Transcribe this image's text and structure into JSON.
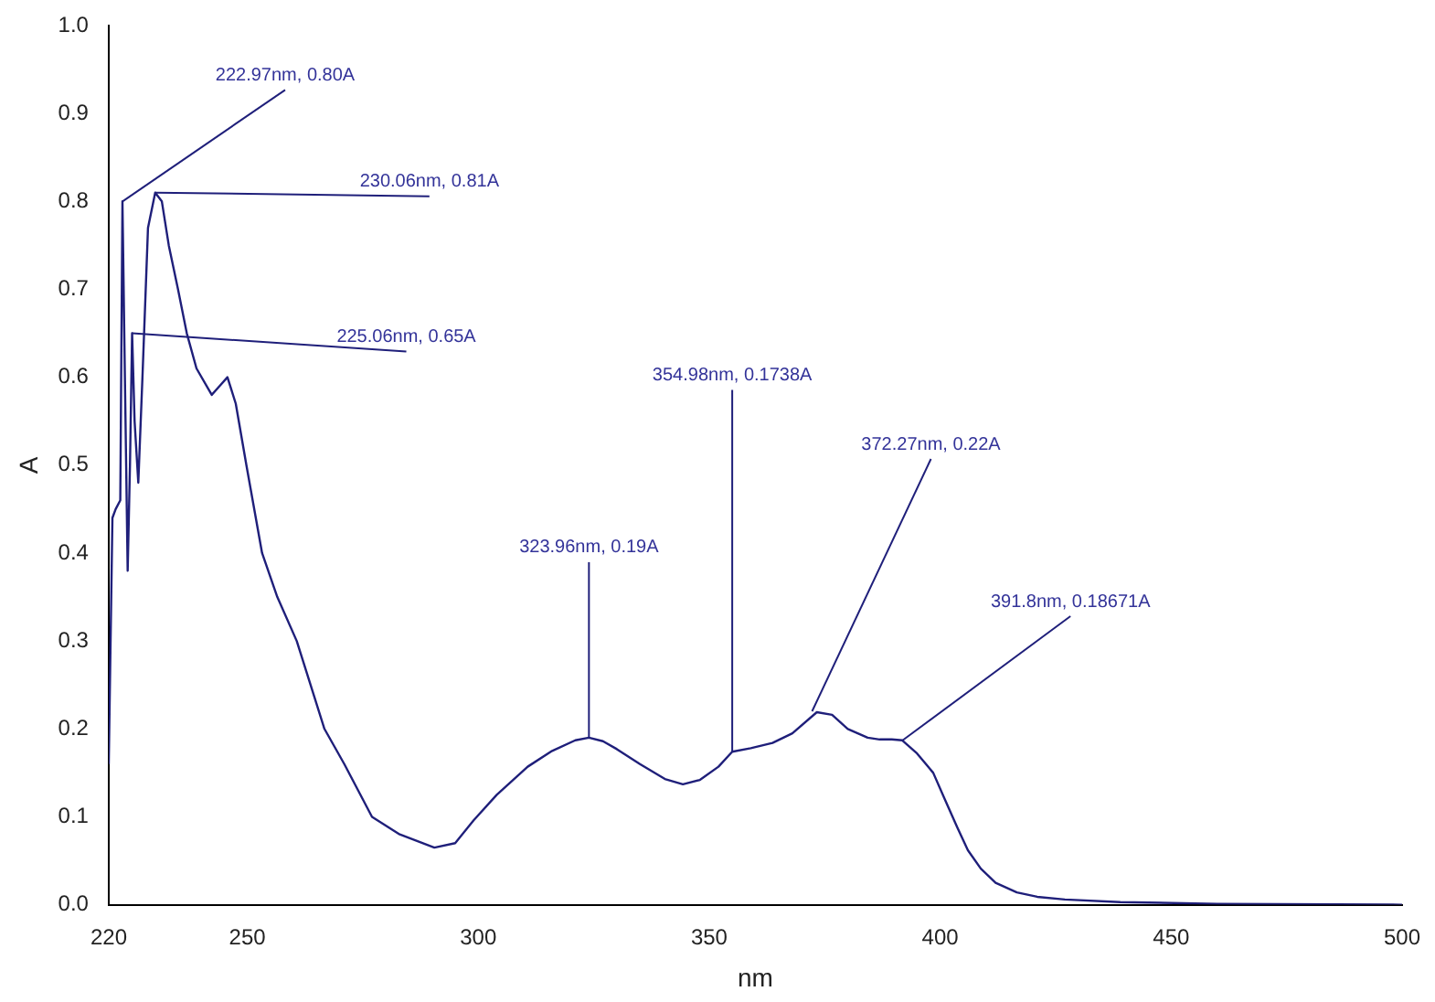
{
  "chart_data": {
    "type": "line",
    "xlabel": "nm",
    "ylabel": "A",
    "x": [
      220,
      220.8,
      221.5,
      222.5,
      222.97,
      223.5,
      224.1,
      224.6,
      225.06,
      225.6,
      226.4,
      227.3,
      228.5,
      230.06,
      231.5,
      233,
      235,
      236.9,
      239,
      242.3,
      244,
      245.7,
      247.5,
      249.8,
      253.2,
      256.5,
      260.7,
      266.7,
      271,
      277,
      283,
      290.5,
      295,
      299,
      304,
      310.7,
      316,
      321,
      323.96,
      327,
      330,
      335,
      340.4,
      344.3,
      348,
      352,
      354.98,
      359,
      363.7,
      368,
      373.3,
      376.6,
      380,
      384.3,
      386.9,
      389.5,
      391.8,
      395,
      398.5,
      401,
      403.7,
      406,
      408.8,
      412,
      416.6,
      421,
      427,
      439,
      460,
      500
    ],
    "series": [
      {
        "color": "#1f1f7a",
        "values": [
          0.16,
          0.44,
          0.45,
          0.46,
          0.8,
          0.6,
          0.38,
          0.5,
          0.65,
          0.55,
          0.48,
          0.6,
          0.77,
          0.81,
          0.8,
          0.75,
          0.7,
          0.65,
          0.61,
          0.58,
          0.59,
          0.6,
          0.57,
          0.5,
          0.4,
          0.35,
          0.3,
          0.2,
          0.16,
          0.1,
          0.08,
          0.065,
          0.07,
          0.096,
          0.125,
          0.157,
          0.175,
          0.187,
          0.19,
          0.186,
          0.177,
          0.16,
          0.143,
          0.137,
          0.142,
          0.157,
          0.174,
          0.178,
          0.184,
          0.195,
          0.219,
          0.216,
          0.2,
          0.19,
          0.188,
          0.188,
          0.187,
          0.172,
          0.15,
          0.12,
          0.088,
          0.062,
          0.041,
          0.025,
          0.014,
          0.009,
          0.006,
          0.003,
          0.001,
          0.0
        ]
      }
    ],
    "xlim": [
      220,
      500
    ],
    "xticks": [
      220,
      250,
      300,
      350,
      400,
      450,
      500
    ],
    "ylim": [
      0,
      1
    ],
    "yticks": [
      {
        "value": 0,
        "label": "0.0"
      },
      0.1,
      0.2,
      0.3,
      0.4,
      0.5,
      0.6,
      0.7,
      0.8,
      0.9,
      {
        "value": 1,
        "label": "1.0"
      }
    ],
    "grid": false,
    "legend": false,
    "marker": "none",
    "line_style": "solid",
    "annotations": [
      {
        "text": "222.97nm, 0.80A",
        "x": 222.97,
        "y": 0.8
      },
      {
        "text": "230.06nm, 0.81A",
        "x": 230.06,
        "y": 0.81
      },
      {
        "text": "225.06nm, 0.65A",
        "x": 225.06,
        "y": 0.65
      },
      {
        "text": "323.96nm, 0.19A",
        "x": 323.96,
        "y": 0.19
      },
      {
        "text": "354.98nm, 0.1738A",
        "x": 354.98,
        "y": 0.1738
      },
      {
        "text": "372.27nm, 0.22A",
        "x": 372.27,
        "y": 0.22
      },
      {
        "text": "391.8nm, 0.18671A",
        "x": 391.8,
        "y": 0.18671
      }
    ]
  }
}
